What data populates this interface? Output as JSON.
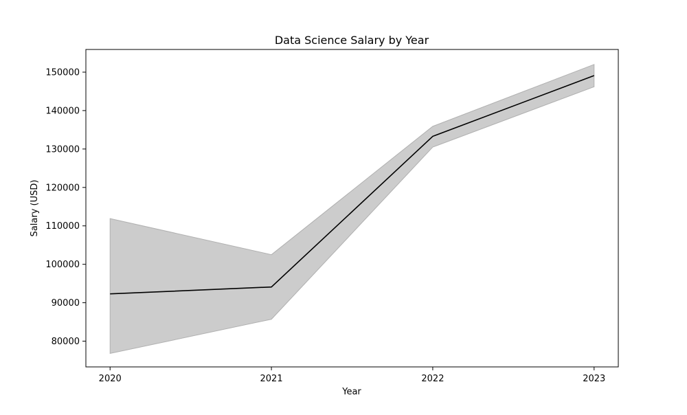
{
  "chart_data": {
    "type": "line",
    "title": "Data Science Salary by Year",
    "xlabel": "Year",
    "ylabel": "Salary (USD)",
    "x": [
      2020,
      2021,
      2022,
      2023
    ],
    "x_tick_labels": [
      "2020",
      "2021",
      "2022",
      "2023"
    ],
    "y_ticks": [
      80000,
      90000,
      100000,
      110000,
      120000,
      130000,
      140000,
      150000
    ],
    "y_tick_labels": [
      "80000",
      "90000",
      "100000",
      "110000",
      "120000",
      "130000",
      "140000",
      "150000"
    ],
    "xlim": [
      2019.85,
      2023.15
    ],
    "ylim": [
      73300,
      155900
    ],
    "series": [
      {
        "values": [
          92300,
          94100,
          133300,
          149100
        ],
        "ci_lower": [
          76800,
          85700,
          130500,
          146200
        ],
        "ci_upper": [
          111900,
          102500,
          135900,
          152000
        ],
        "color": "#000000",
        "band_color": "#cccccc",
        "band_edge_color": "#b0b0b0"
      }
    ],
    "grid": false,
    "legend": "none"
  }
}
